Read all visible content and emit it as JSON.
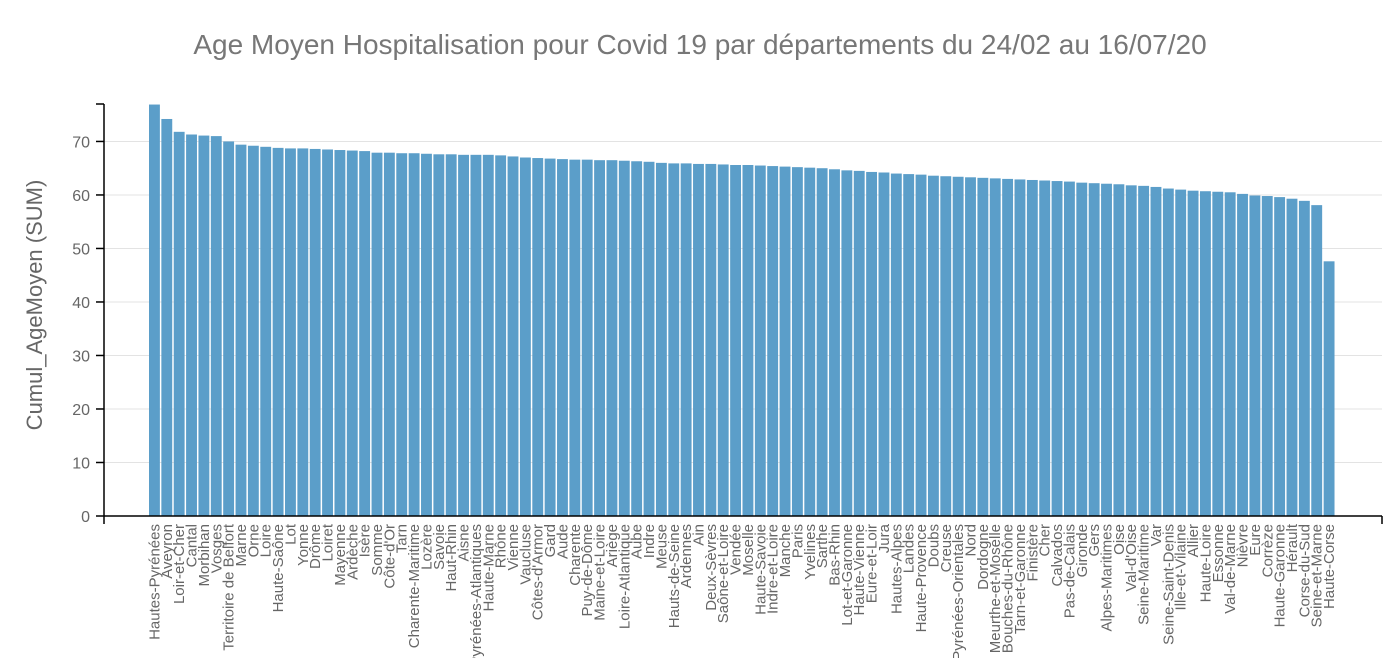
{
  "chart_data": {
    "type": "bar",
    "title": "Age Moyen Hospitalisation pour Covid 19 par départements du 24/02 au 16/07/20",
    "xlabel": "",
    "ylabel": "Cumul_AgeMoyen (SUM)",
    "ylim": [
      0,
      77
    ],
    "yticks": [
      0,
      10,
      20,
      30,
      40,
      50,
      60,
      70
    ],
    "grid": true,
    "bar_color": "#5b9ec9",
    "categories": [
      "Hautes-Pyrénées",
      "Aveyron",
      "Loir-et-Cher",
      "Cantal",
      "Morbihan",
      "Vosges",
      "Territoire de Belfort",
      "Marne",
      "Orne",
      "Loire",
      "Haute-Saône",
      "Lot",
      "Yonne",
      "Drôme",
      "Loiret",
      "Mayenne",
      "Ardèche",
      "Isère",
      "Somme",
      "Côte-d'Or",
      "Tarn",
      "Charente-Maritime",
      "Lozère",
      "Savoie",
      "Haut-Rhin",
      "Aisne",
      "Pyrénées-Atlantiques",
      "Haute-Marne",
      "Rhône",
      "Vienne",
      "Vaucluse",
      "Côtes-d'Armor",
      "Gard",
      "Aude",
      "Charente",
      "Puy-de-Dôme",
      "Maine-et-Loire",
      "Ariège",
      "Loire-Atlantique",
      "Aube",
      "Indre",
      "Meuse",
      "Hauts-de-Seine",
      "Ardennes",
      "Ain",
      "Deux-Sèvres",
      "Saône-et-Loire",
      "Vendée",
      "Moselle",
      "Haute-Savoie",
      "Indre-et-Loire",
      "Manche",
      "Paris",
      "Yvelines",
      "Sarthe",
      "Bas-Rhin",
      "Lot-et-Garonne",
      "Haute-Vienne",
      "Eure-et-Loir",
      "Jura",
      "Hautes-Alpes",
      "Landes",
      "Haute-Provence",
      "Doubs",
      "Creuse",
      "Pyrénées-Orientales",
      "Nord",
      "Dordogne",
      "Meurthe-et-Moselle",
      "Bouches-du-Rhône",
      "Tarn-et-Garonne",
      "Finistère",
      "Cher",
      "Calvados",
      "Pas-de-Calais",
      "Gironde",
      "Gers",
      "Alpes-Maritimes",
      "Oise",
      "Val-d'Oise",
      "Seine-Maritime",
      "Var",
      "Seine-Saint-Denis",
      "Ille-et-Vilaine",
      "Allier",
      "Haute-Loire",
      "Essonne",
      "Val-de-Marne",
      "Nièvre",
      "Eure",
      "Corrèze",
      "Haute-Garonne",
      "Hérault",
      "Corse-du-Sud",
      "Seine-et-Marne",
      "Haute-Corse"
    ],
    "values": [
      76.9,
      74.2,
      71.8,
      71.3,
      71.1,
      71.0,
      70.0,
      69.4,
      69.2,
      69.0,
      68.8,
      68.7,
      68.7,
      68.6,
      68.5,
      68.4,
      68.3,
      68.2,
      67.9,
      67.9,
      67.8,
      67.8,
      67.7,
      67.6,
      67.6,
      67.5,
      67.5,
      67.5,
      67.4,
      67.2,
      67.0,
      66.9,
      66.8,
      66.7,
      66.6,
      66.6,
      66.5,
      66.5,
      66.4,
      66.3,
      66.2,
      66.0,
      65.9,
      65.9,
      65.8,
      65.8,
      65.7,
      65.6,
      65.6,
      65.5,
      65.4,
      65.3,
      65.2,
      65.1,
      65.0,
      64.8,
      64.6,
      64.5,
      64.3,
      64.2,
      64.0,
      63.9,
      63.8,
      63.6,
      63.5,
      63.4,
      63.3,
      63.2,
      63.1,
      63.0,
      62.9,
      62.8,
      62.7,
      62.6,
      62.5,
      62.3,
      62.2,
      62.1,
      62.0,
      61.8,
      61.7,
      61.5,
      61.2,
      61.0,
      60.8,
      60.7,
      60.6,
      60.5,
      60.2,
      59.9,
      59.8,
      59.6,
      59.3,
      58.9,
      58.1,
      47.6
    ]
  }
}
